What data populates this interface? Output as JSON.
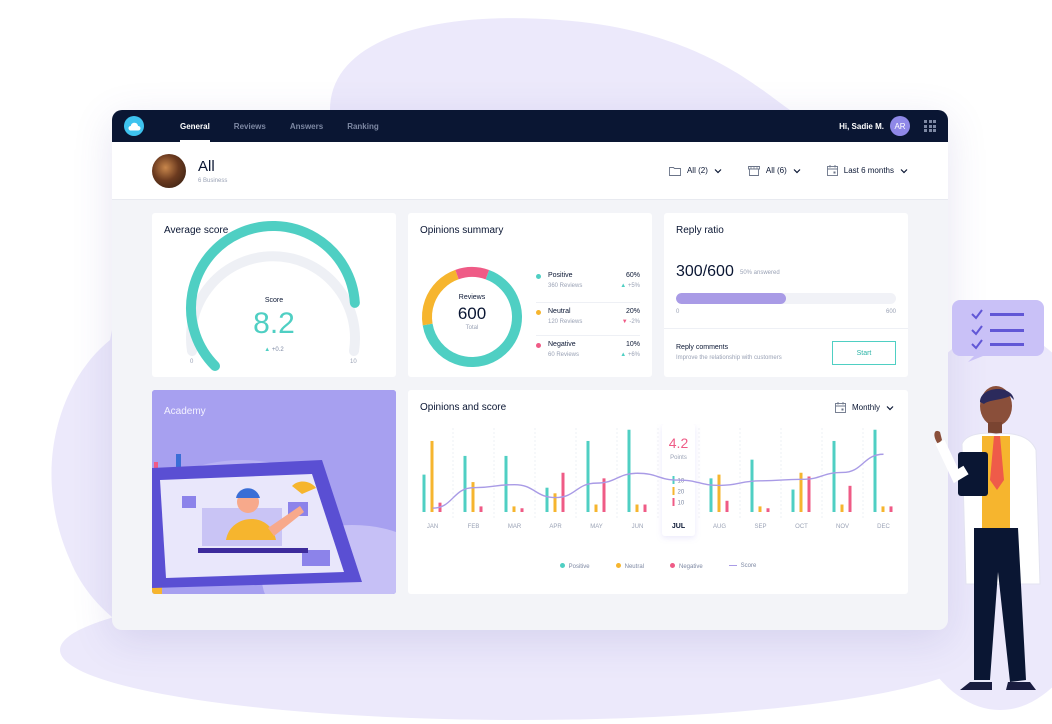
{
  "nav": {
    "tabs": [
      "General",
      "Reviews",
      "Answers",
      "Ranking"
    ],
    "active": 0
  },
  "user": {
    "greeting": "Hi, Sadie M.",
    "initials": "AR"
  },
  "business": {
    "title": "All",
    "subtitle": "6 Business"
  },
  "filters": {
    "folders": "All (2)",
    "stores": "All (6)",
    "period": "Last 6 months"
  },
  "average_score": {
    "title": "Average score",
    "label": "Score",
    "value": "8.2",
    "delta": "+0.2",
    "min": "0",
    "max": "10",
    "fraction": 0.82
  },
  "opinions_summary": {
    "title": "Opinions summary",
    "center_label": "Reviews",
    "center_value": "600",
    "center_sub": "Total",
    "items": [
      {
        "name": "Positive",
        "reviews": "360 Reviews",
        "pct": "60%",
        "delta": "+5%",
        "dir": "up",
        "color": "#4fcfc3",
        "value": 60
      },
      {
        "name": "Neutral",
        "reviews": "120 Reviews",
        "pct": "20%",
        "delta": "-2%",
        "dir": "down",
        "color": "#f6b52e",
        "value": 20
      },
      {
        "name": "Negative",
        "reviews": "60 Reviews",
        "pct": "10%",
        "delta": "+6%",
        "dir": "up",
        "color": "#ef5b86",
        "value": 10
      }
    ]
  },
  "reply_ratio": {
    "title": "Reply ratio",
    "value": "300/600",
    "note": "50% answered",
    "min": "0",
    "max": "600",
    "fraction": 0.5,
    "comments_title": "Reply comments",
    "comments_sub": "Improve the relationship with customers",
    "button": "Start"
  },
  "academy": {
    "title": "Academy"
  },
  "opinions_score": {
    "title": "Opinions and score",
    "period": "Monthly",
    "tooltip": {
      "score": "4.2",
      "label": "Points",
      "positive": "10",
      "neutral": "20",
      "negative": "10"
    },
    "legend": [
      "Positive",
      "Neutral",
      "Negative",
      "Score"
    ]
  },
  "colors": {
    "positive": "#4fcfc3",
    "neutral": "#f6b52e",
    "negative": "#ef5b86",
    "score": "#a99be6",
    "navy": "#0a1633",
    "accent": "#8f88e8"
  },
  "chart_data": {
    "type": "bar",
    "categories": [
      "JAN",
      "FEB",
      "MAR",
      "APR",
      "MAY",
      "JUN",
      "JUL",
      "AUG",
      "SEP",
      "OCT",
      "NOV",
      "DEC"
    ],
    "highlight": "JUL",
    "series": [
      {
        "name": "Positive",
        "values": [
          20,
          30,
          30,
          13,
          38,
          44,
          10,
          18,
          28,
          12,
          38,
          44
        ]
      },
      {
        "name": "Neutral",
        "values": [
          38,
          16,
          3,
          10,
          4,
          4,
          20,
          20,
          3,
          21,
          4,
          3
        ]
      },
      {
        "name": "Negative",
        "values": [
          5,
          3,
          2,
          21,
          18,
          4,
          10,
          6,
          2,
          19,
          14,
          3
        ]
      },
      {
        "name": "Score",
        "values": [
          0.5,
          3.2,
          3.6,
          1.9,
          3.8,
          5.1,
          4.2,
          3.5,
          4.1,
          4.3,
          5.2,
          7.6
        ]
      }
    ],
    "ylim": [
      0,
      46
    ],
    "score_ylim": [
      0,
      10
    ]
  }
}
